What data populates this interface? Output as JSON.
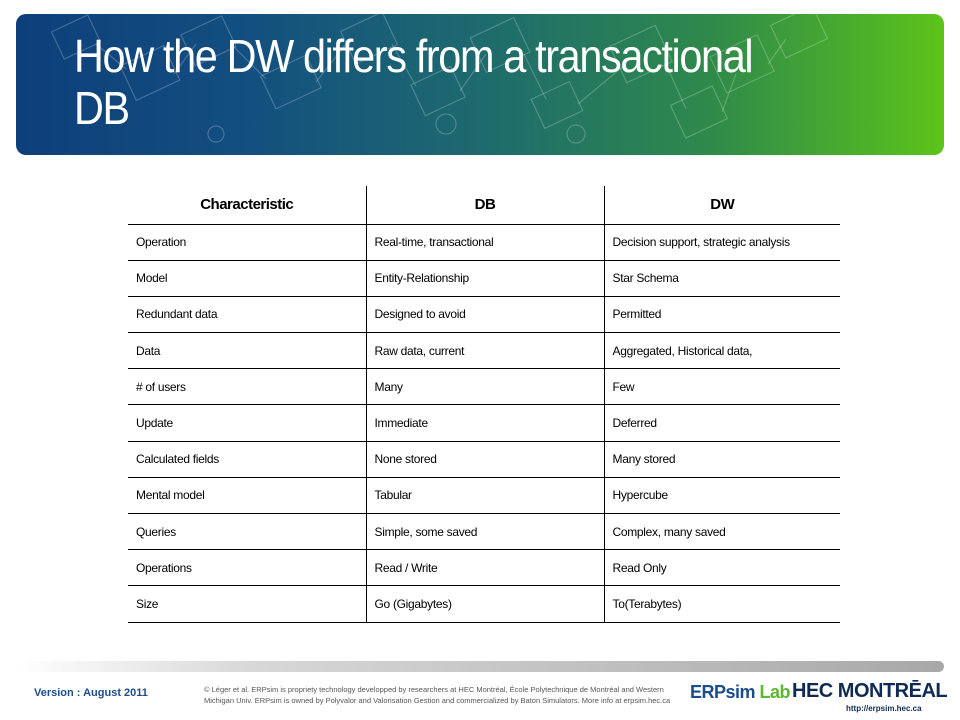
{
  "slide": {
    "title": "How the DW differs from a transactional DB"
  },
  "table": {
    "headers": [
      "Characteristic",
      "DB",
      "DW"
    ],
    "rows": [
      [
        "Operation",
        "Real-time, transactional",
        "Decision support, strategic analysis"
      ],
      [
        "Model",
        "Entity-Relationship",
        "Star Schema"
      ],
      [
        "Redundant data",
        "Designed to avoid",
        "Permitted"
      ],
      [
        "Data",
        "Raw data, current",
        "Aggregated, Historical data,"
      ],
      [
        "# of users",
        "Many",
        "Few"
      ],
      [
        "Update",
        "Immediate",
        "Deferred"
      ],
      [
        "Calculated fields",
        "None stored",
        "Many stored"
      ],
      [
        "Mental model",
        "Tabular",
        "Hypercube"
      ],
      [
        "Queries",
        "Simple, some saved",
        "Complex, many saved"
      ],
      [
        "Operations",
        "Read / Write",
        "Read Only"
      ],
      [
        "Size",
        "Go (Gigabytes)",
        "To(Terabytes)"
      ]
    ]
  },
  "footer": {
    "version": "Version : August 2011",
    "copyright": "© Léger et al. ERPsim is propriety technology developped by researchers at HEC Montréal, École Polytechnique de Montréal and Western Michigan Univ. ERPsim is owned by Polyvalor and Valorisation Gestion and commercialized by Baton Simulators. More info at erpsim.hec.ca",
    "logo_erpsim_main": "ERPsim",
    "logo_erpsim_lab": "Lab",
    "logo_hec": "HEC MONTRĒAL",
    "url": "http://erpsim.hec.ca"
  },
  "colors": {
    "banner_start": "#0d3f7a",
    "banner_end": "#5cc419",
    "brand_blue": "#1b4d8c"
  }
}
